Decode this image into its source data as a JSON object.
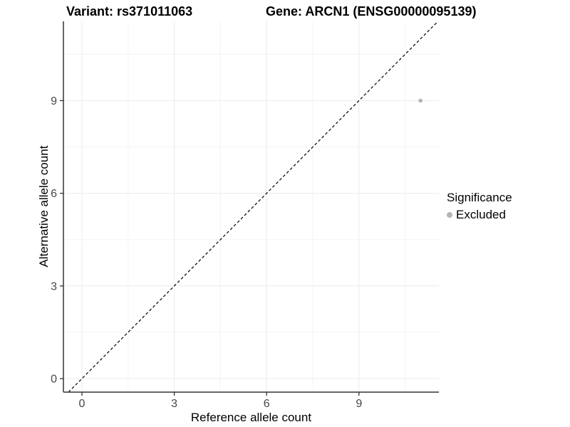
{
  "chart_data": {
    "type": "scatter",
    "title_left": "Variant: rs371011063",
    "title_right": "Gene: ARCN1 (ENSG00000095139)",
    "xlabel": "Reference allele count",
    "ylabel": "Alternative allele count",
    "xlim": [
      -0.55,
      11.55
    ],
    "ylim": [
      -0.55,
      11.55
    ],
    "x_ticks": [
      0,
      3,
      6,
      9
    ],
    "y_ticks": [
      0,
      3,
      6,
      9
    ],
    "minor_grid_offset": 1.5,
    "grid": true,
    "reference_line": {
      "kind": "identity",
      "style": "dashed",
      "color": "#000000"
    },
    "series": [
      {
        "name": "Excluded",
        "color": "#b5b5b5",
        "points": [
          {
            "x": 11,
            "y": 9
          }
        ]
      }
    ],
    "legend": {
      "title": "Significance",
      "position": "right",
      "entries": [
        {
          "label": "Excluded",
          "color": "#b5b5b5"
        }
      ]
    }
  },
  "colors": {
    "background": "#ffffff",
    "grid_major": "#ebebeb",
    "grid_minor": "#f4f4f4",
    "axis_line": "#333333",
    "tick_mark": "#333333",
    "tick_label": "#474747"
  }
}
